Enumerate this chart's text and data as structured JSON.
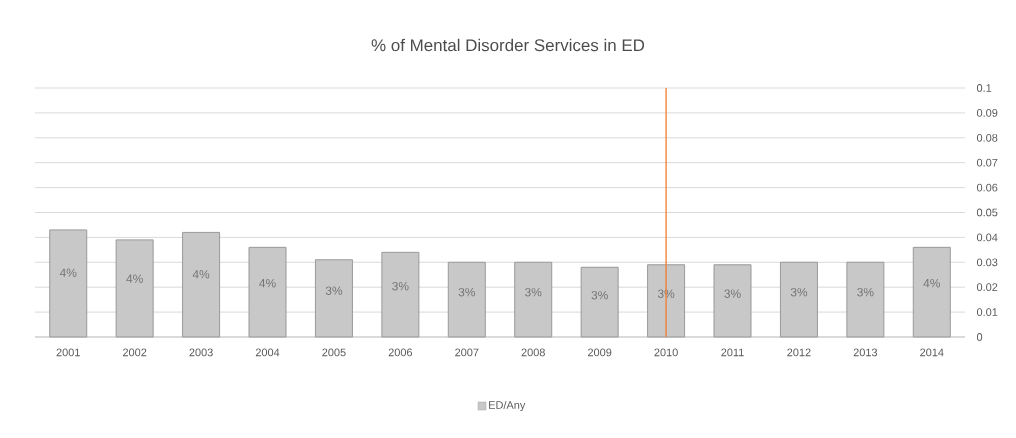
{
  "chart_data": {
    "type": "bar",
    "title": "% of Mental Disorder Services in ED",
    "categories": [
      "2001",
      "2002",
      "2003",
      "2004",
      "2005",
      "2006",
      "2007",
      "2008",
      "2009",
      "2010",
      "2011",
      "2012",
      "2013",
      "2014"
    ],
    "series": [
      {
        "name": "ED/Any",
        "color": "#c8c8c8",
        "values": [
          0.043,
          0.039,
          0.042,
          0.036,
          0.031,
          0.034,
          0.03,
          0.03,
          0.028,
          0.029,
          0.029,
          0.03,
          0.03,
          0.036
        ],
        "value_labels": [
          "4%",
          "4%",
          "4%",
          "4%",
          "3%",
          "3%",
          "3%",
          "3%",
          "3%",
          "3%",
          "3%",
          "3%",
          "3%",
          "4%"
        ]
      }
    ],
    "ylim": [
      0,
      0.1
    ],
    "yticks": [
      0,
      0.01,
      0.02,
      0.03,
      0.04,
      0.05,
      0.06,
      0.07,
      0.08,
      0.09,
      0.1
    ],
    "grid": "y",
    "legend": "bottom",
    "ref_lines": [
      {
        "axis": "x",
        "value": "2010",
        "color": "#ed7d31"
      }
    ]
  }
}
